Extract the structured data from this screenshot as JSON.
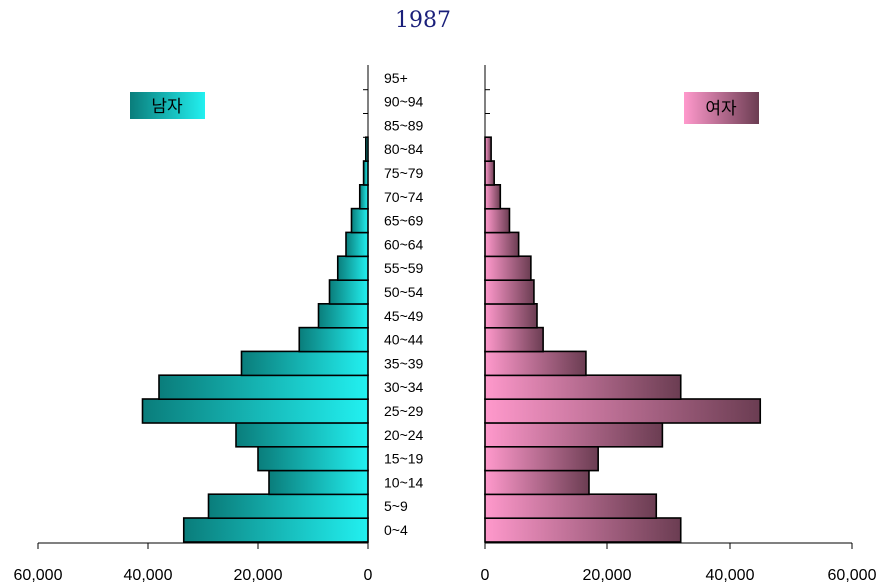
{
  "chart_data": {
    "type": "bar",
    "subtype": "population-pyramid",
    "title": "1987",
    "categories": [
      "0~4",
      "5~9",
      "10~14",
      "15~19",
      "20~24",
      "25~29",
      "30~34",
      "35~39",
      "40~44",
      "45~49",
      "50~54",
      "55~59",
      "60~64",
      "65~69",
      "70~74",
      "75~79",
      "80~84",
      "85~89",
      "90~94",
      "95+"
    ],
    "series": [
      {
        "name": "남자",
        "side": "left",
        "values": [
          33500,
          29000,
          18000,
          20000,
          24000,
          41000,
          38000,
          23000,
          12500,
          9000,
          7000,
          5500,
          4000,
          3000,
          1500,
          800,
          400,
          0,
          0,
          0
        ],
        "color_start": "#0a7d7b",
        "color_end": "#22f0f0"
      },
      {
        "name": "여자",
        "side": "right",
        "values": [
          32000,
          28000,
          17000,
          18500,
          29000,
          45000,
          32000,
          16500,
          9500,
          8500,
          8000,
          7500,
          5500,
          4000,
          2500,
          1500,
          1000,
          0,
          0,
          0
        ],
        "color_start": "#ff99cc",
        "color_end": "#6b3d52"
      }
    ],
    "xlim": [
      0,
      60000
    ],
    "left_ticks": [
      "60,000",
      "40,000",
      "20,000",
      "0"
    ],
    "right_ticks": [
      "0",
      "20,000",
      "40,000",
      "60,000"
    ],
    "legend_placement": "upper corners",
    "grid": false
  }
}
